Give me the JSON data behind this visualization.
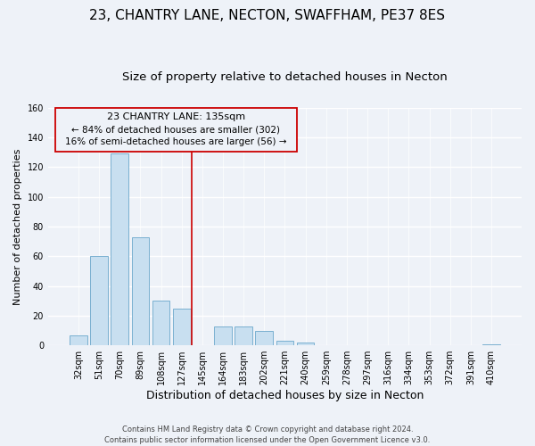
{
  "title": "23, CHANTRY LANE, NECTON, SWAFFHAM, PE37 8ES",
  "subtitle": "Size of property relative to detached houses in Necton",
  "xlabel": "Distribution of detached houses by size in Necton",
  "ylabel": "Number of detached properties",
  "bar_labels": [
    "32sqm",
    "51sqm",
    "70sqm",
    "89sqm",
    "108sqm",
    "127sqm",
    "145sqm",
    "164sqm",
    "183sqm",
    "202sqm",
    "221sqm",
    "240sqm",
    "259sqm",
    "278sqm",
    "297sqm",
    "316sqm",
    "334sqm",
    "353sqm",
    "372sqm",
    "391sqm",
    "410sqm"
  ],
  "bar_values": [
    7,
    60,
    129,
    73,
    30,
    25,
    0,
    13,
    13,
    10,
    3,
    2,
    0,
    0,
    0,
    0,
    0,
    0,
    0,
    0,
    1
  ],
  "bar_color": "#c8dff0",
  "bar_edge_color": "#7ab0d0",
  "vline_x_index": 6,
  "vline_color": "#cc0000",
  "ylim": [
    0,
    160
  ],
  "yticks": [
    0,
    20,
    40,
    60,
    80,
    100,
    120,
    140,
    160
  ],
  "annotation_title": "23 CHANTRY LANE: 135sqm",
  "annotation_line1": "← 84% of detached houses are smaller (302)",
  "annotation_line2": "16% of semi-detached houses are larger (56) →",
  "footer1": "Contains HM Land Registry data © Crown copyright and database right 2024.",
  "footer2": "Contains public sector information licensed under the Open Government Licence v3.0.",
  "background_color": "#eef2f8",
  "grid_color": "#ffffff",
  "title_fontsize": 11,
  "subtitle_fontsize": 9.5,
  "xlabel_fontsize": 9,
  "ylabel_fontsize": 8,
  "tick_fontsize": 7,
  "footer_fontsize": 6
}
